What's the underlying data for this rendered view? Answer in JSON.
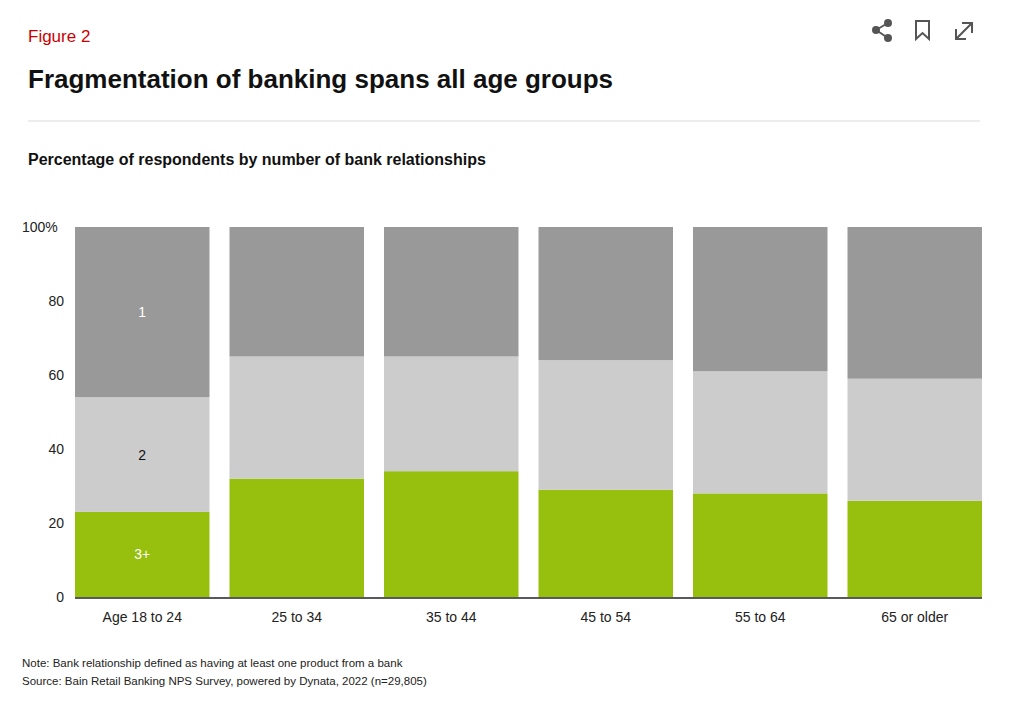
{
  "chart_data": {
    "type": "bar",
    "figure_label": "Figure 2",
    "title": "Fragmentation of banking spans all age groups",
    "subtitle": "Percentage of respondents by number of bank relationships",
    "notes": [
      "Note: Bank relationship defined as having at least one product from a bank",
      "Source: Bain Retail Banking NPS Survey, powered by Dynata, 2022 (n=29,805)"
    ],
    "categories": [
      "Age 18 to 24",
      "25 to 34",
      "35 to 44",
      "45 to 54",
      "55 to 64",
      "65 or older"
    ],
    "series": [
      {
        "name": "3+",
        "color": "#97bf0d",
        "values": [
          23,
          32,
          34,
          29,
          28,
          26
        ]
      },
      {
        "name": "2",
        "color": "#cccccc",
        "values": [
          31,
          33,
          31,
          35,
          33,
          33
        ]
      },
      {
        "name": "1",
        "color": "#999999",
        "values": [
          46,
          35,
          35,
          36,
          39,
          41
        ]
      }
    ],
    "stacked": true,
    "grid": false,
    "data_labels": false,
    "ylim": [
      0,
      100
    ],
    "yticks": [
      0,
      20,
      40,
      60,
      80,
      {
        "value": 100,
        "label": "100%"
      }
    ]
  }
}
